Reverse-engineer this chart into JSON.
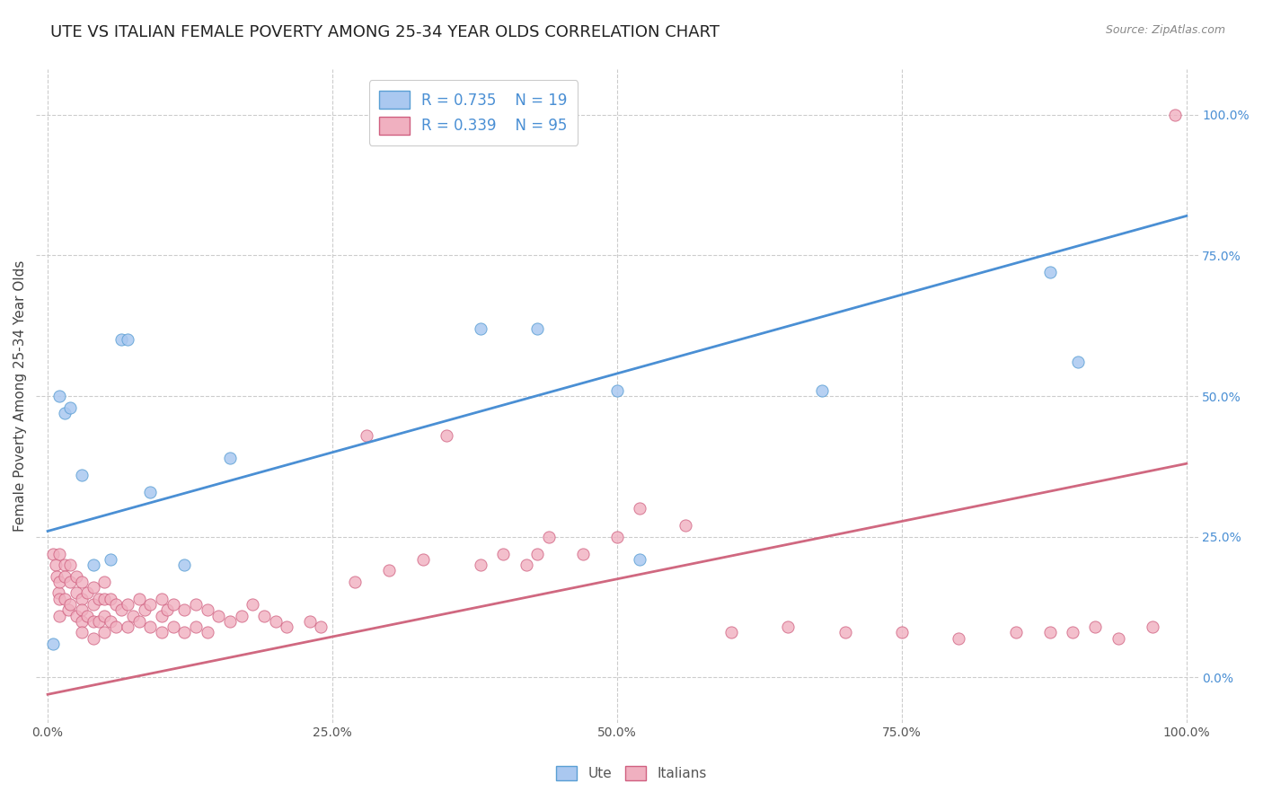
{
  "title": "UTE VS ITALIAN FEMALE POVERTY AMONG 25-34 YEAR OLDS CORRELATION CHART",
  "source": "Source: ZipAtlas.com",
  "ylabel": "Female Poverty Among 25-34 Year Olds",
  "xlim": [
    -0.01,
    1.01
  ],
  "ylim": [
    -0.08,
    1.08
  ],
  "xticks": [
    0.0,
    0.25,
    0.5,
    0.75,
    1.0
  ],
  "xticklabels": [
    "0.0%",
    "25.0%",
    "50.0%",
    "75.0%",
    "100.0%"
  ],
  "ytick_positions": [
    0.0,
    0.25,
    0.5,
    0.75,
    1.0
  ],
  "ytick_labels_right": [
    "0.0%",
    "25.0%",
    "50.0%",
    "75.0%",
    "100.0%"
  ],
  "ute_color": "#aac8f0",
  "ute_edge_color": "#5a9fd4",
  "italian_color": "#f0b0c0",
  "italian_edge_color": "#d06080",
  "blue_line_color": "#4a8fd4",
  "pink_line_color": "#d06880",
  "ute_R": 0.735,
  "ute_N": 19,
  "italian_R": 0.339,
  "italian_N": 95,
  "ute_line_x": [
    0.0,
    1.0
  ],
  "ute_line_y": [
    0.26,
    0.82
  ],
  "italian_line_x": [
    0.0,
    1.0
  ],
  "italian_line_y": [
    -0.03,
    0.38
  ],
  "ute_x": [
    0.005,
    0.01,
    0.015,
    0.02,
    0.03,
    0.04,
    0.055,
    0.065,
    0.07,
    0.09,
    0.12,
    0.16,
    0.38,
    0.43,
    0.5,
    0.52,
    0.68,
    0.88,
    0.905
  ],
  "ute_y": [
    0.06,
    0.5,
    0.47,
    0.48,
    0.36,
    0.2,
    0.21,
    0.6,
    0.6,
    0.33,
    0.2,
    0.39,
    0.62,
    0.62,
    0.51,
    0.21,
    0.51,
    0.72,
    0.56
  ],
  "italian_x": [
    0.005,
    0.007,
    0.008,
    0.009,
    0.01,
    0.01,
    0.01,
    0.01,
    0.015,
    0.015,
    0.015,
    0.018,
    0.02,
    0.02,
    0.02,
    0.025,
    0.025,
    0.025,
    0.03,
    0.03,
    0.03,
    0.03,
    0.03,
    0.035,
    0.035,
    0.04,
    0.04,
    0.04,
    0.04,
    0.045,
    0.045,
    0.05,
    0.05,
    0.05,
    0.05,
    0.055,
    0.055,
    0.06,
    0.06,
    0.065,
    0.07,
    0.07,
    0.075,
    0.08,
    0.08,
    0.085,
    0.09,
    0.09,
    0.1,
    0.1,
    0.1,
    0.105,
    0.11,
    0.11,
    0.12,
    0.12,
    0.13,
    0.13,
    0.14,
    0.14,
    0.15,
    0.16,
    0.17,
    0.18,
    0.19,
    0.2,
    0.21,
    0.23,
    0.24,
    0.27,
    0.28,
    0.3,
    0.33,
    0.35,
    0.38,
    0.4,
    0.42,
    0.43,
    0.44,
    0.47,
    0.5,
    0.52,
    0.56,
    0.6,
    0.65,
    0.7,
    0.75,
    0.8,
    0.85,
    0.88,
    0.9,
    0.92,
    0.94,
    0.97,
    0.99
  ],
  "italian_y": [
    0.22,
    0.2,
    0.18,
    0.15,
    0.22,
    0.17,
    0.14,
    0.11,
    0.2,
    0.18,
    0.14,
    0.12,
    0.2,
    0.17,
    0.13,
    0.18,
    0.15,
    0.11,
    0.17,
    0.14,
    0.12,
    0.1,
    0.08,
    0.15,
    0.11,
    0.16,
    0.13,
    0.1,
    0.07,
    0.14,
    0.1,
    0.17,
    0.14,
    0.11,
    0.08,
    0.14,
    0.1,
    0.13,
    0.09,
    0.12,
    0.13,
    0.09,
    0.11,
    0.14,
    0.1,
    0.12,
    0.13,
    0.09,
    0.14,
    0.11,
    0.08,
    0.12,
    0.13,
    0.09,
    0.12,
    0.08,
    0.13,
    0.09,
    0.12,
    0.08,
    0.11,
    0.1,
    0.11,
    0.13,
    0.11,
    0.1,
    0.09,
    0.1,
    0.09,
    0.17,
    0.43,
    0.19,
    0.21,
    0.43,
    0.2,
    0.22,
    0.2,
    0.22,
    0.25,
    0.22,
    0.25,
    0.3,
    0.27,
    0.08,
    0.09,
    0.08,
    0.08,
    0.07,
    0.08,
    0.08,
    0.08,
    0.09,
    0.07,
    0.09,
    1.0
  ],
  "background_color": "#ffffff",
  "grid_color": "#cccccc",
  "marker_size": 90,
  "title_fontsize": 13,
  "axis_label_fontsize": 11,
  "legend_fontsize": 12
}
